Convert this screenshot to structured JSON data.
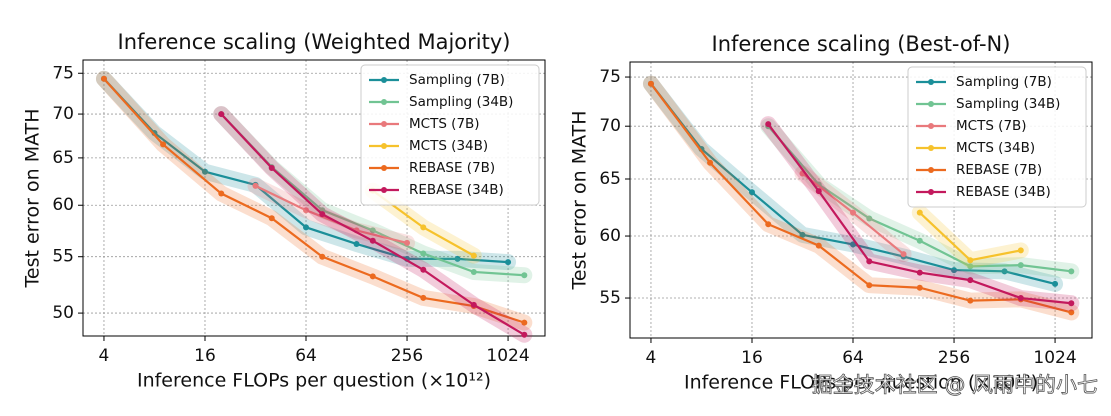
{
  "chart_data": [
    {
      "type": "line",
      "title": "Inference scaling (Weighted Majority)",
      "x_label": "Inference FLOPs per question (×10¹²)",
      "y_label": "Test error on MATH",
      "xlog": true,
      "ylog": true,
      "grid": true,
      "legend": "upper right",
      "xlim": [
        3,
        1700
      ],
      "xticks": [
        4,
        16,
        64,
        256,
        1024
      ],
      "ylim": [
        48.1,
        76.7
      ],
      "yticks": [
        50,
        55,
        60,
        65,
        70,
        75
      ],
      "series": [
        {
          "name": "Sampling (7B)",
          "color": "#1b8f99",
          "x": [
            4,
            8,
            16,
            32,
            64,
            128,
            256,
            512,
            1024
          ],
          "values": [
            74.3,
            67.8,
            63.5,
            62.1,
            57.8,
            56.2,
            54.8,
            54.8,
            54.5
          ]
        },
        {
          "name": "Sampling (34B)",
          "color": "#71c493",
          "x": [
            20,
            40,
            80,
            160,
            320,
            640,
            1280
          ],
          "values": [
            70,
            64,
            59.5,
            57.5,
            55.3,
            53.6,
            53.3
          ]
        },
        {
          "name": "MCTS (7B)",
          "color": "#e9797c",
          "x": [
            32,
            64,
            128,
            256
          ],
          "values": [
            62,
            59.5,
            57.5,
            56.3
          ]
        },
        {
          "name": "MCTS (34B)",
          "color": "#f6c22c",
          "x": [
            160,
            320,
            640
          ],
          "values": [
            61.5,
            57.8,
            55.1
          ]
        },
        {
          "name": "REBASE (7B)",
          "color": "#ec6a1f",
          "x": [
            4,
            9,
            20,
            40,
            80,
            160,
            320,
            640,
            1280
          ],
          "values": [
            74.3,
            66.5,
            61.2,
            58.7,
            55,
            53.2,
            51.3,
            50.6,
            49.2
          ]
        },
        {
          "name": "REBASE (34B)",
          "color": "#c3195d",
          "x": [
            20,
            40,
            80,
            160,
            320,
            640,
            1280
          ],
          "values": [
            70,
            63.9,
            59.1,
            56.5,
            53.8,
            50.7,
            48.2
          ]
        }
      ]
    },
    {
      "type": "line",
      "title": "Inference scaling (Best-of-N)",
      "x_label": "Inference FLOPs per question (×10¹²)",
      "y_label": "Test error on MATH",
      "xlog": true,
      "ylog": true,
      "grid": true,
      "legend": "upper right",
      "xlim": [
        3,
        1700
      ],
      "xticks": [
        4,
        16,
        64,
        256,
        1024
      ],
      "ylim": [
        52,
        76.6
      ],
      "yticks": [
        55,
        60,
        65,
        70,
        75
      ],
      "series": [
        {
          "name": "Sampling (7B)",
          "color": "#1b8f99",
          "x": [
            4,
            8,
            16,
            32,
            64,
            128,
            256,
            512,
            1024
          ],
          "values": [
            74.3,
            67.8,
            63.8,
            60.1,
            59.3,
            58.3,
            57.2,
            57.1,
            56.1
          ]
        },
        {
          "name": "Sampling (34B)",
          "color": "#71c493",
          "x": [
            20,
            40,
            80,
            160,
            320,
            640,
            1280
          ],
          "values": [
            70,
            64.5,
            61.5,
            59.6,
            57.5,
            57.6,
            57.1
          ]
        },
        {
          "name": "MCTS (7B)",
          "color": "#e9797c",
          "x": [
            32,
            64,
            128
          ],
          "values": [
            65.5,
            62,
            58.5
          ]
        },
        {
          "name": "MCTS (34B)",
          "color": "#f6c22c",
          "x": [
            160,
            320,
            640
          ],
          "values": [
            62,
            58,
            58.8
          ]
        },
        {
          "name": "REBASE (7B)",
          "color": "#ec6a1f",
          "x": [
            4,
            9,
            20,
            40,
            80,
            160,
            320,
            640,
            1280
          ],
          "values": [
            74.3,
            66.5,
            61,
            59.2,
            56,
            55.8,
            54.8,
            54.9,
            53.9
          ]
        },
        {
          "name": "REBASE (34B)",
          "color": "#c3195d",
          "x": [
            20,
            40,
            80,
            160,
            320,
            640,
            1280
          ],
          "values": [
            70.2,
            63.9,
            57.9,
            57,
            56.4,
            55,
            54.6
          ]
        }
      ]
    }
  ],
  "watermark": "掘金技术社区 @ 风雨中的小七"
}
